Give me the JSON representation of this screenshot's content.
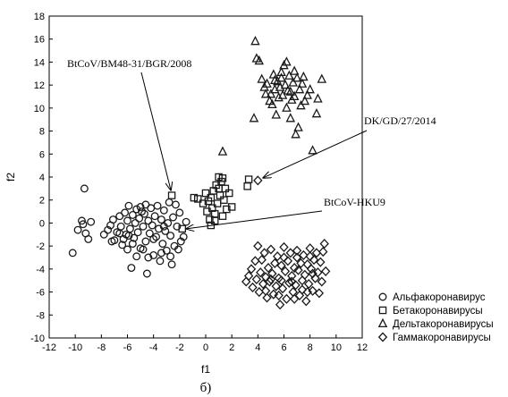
{
  "chart_data": {
    "type": "scatter",
    "xlabel": "f1",
    "ylabel": "f2",
    "xlim": [
      -12,
      12
    ],
    "ylim": [
      -10,
      18
    ],
    "xticks": [
      -12,
      -10,
      -8,
      -6,
      -4,
      -2,
      0,
      2,
      4,
      6,
      8,
      10,
      12
    ],
    "yticks": [
      -10,
      -8,
      -6,
      -4,
      -2,
      0,
      2,
      4,
      6,
      8,
      10,
      12,
      14,
      16,
      18
    ],
    "grid": false,
    "legend_position": "bottom-right outside",
    "caption": "б)",
    "series": [
      {
        "name": "Альфакоронавирус",
        "marker": "circle",
        "points": [
          [
            -10.2,
            -2.6
          ],
          [
            -9.8,
            -0.6
          ],
          [
            -9.5,
            0.2
          ],
          [
            -9.3,
            3.0
          ],
          [
            -9.2,
            -0.9
          ],
          [
            -9.0,
            -1.4
          ],
          [
            -8.8,
            0.1
          ],
          [
            -9.4,
            -0.1
          ],
          [
            -7.8,
            -1.0
          ],
          [
            -7.5,
            -0.6
          ],
          [
            -7.3,
            -0.2
          ],
          [
            -7.1,
            0.3
          ],
          [
            -7.0,
            -1.5
          ],
          [
            -6.8,
            -0.8
          ],
          [
            -6.6,
            0.6
          ],
          [
            -6.5,
            -0.3
          ],
          [
            -6.4,
            -1.9
          ],
          [
            -6.2,
            0.9
          ],
          [
            -6.1,
            -1.0
          ],
          [
            -6.0,
            0.2
          ],
          [
            -5.9,
            1.5
          ],
          [
            -5.8,
            -0.5
          ],
          [
            -5.7,
            -3.9
          ],
          [
            -5.6,
            0.7
          ],
          [
            -5.5,
            -1.3
          ],
          [
            -5.4,
            0.0
          ],
          [
            -5.3,
            1.2
          ],
          [
            -5.2,
            -0.8
          ],
          [
            -5.1,
            0.4
          ],
          [
            -5.0,
            -2.2
          ],
          [
            -4.9,
            1.0
          ],
          [
            -4.8,
            -0.3
          ],
          [
            -4.7,
            0.8
          ],
          [
            -4.6,
            -1.6
          ],
          [
            -4.5,
            -4.4
          ],
          [
            -4.4,
            0.2
          ],
          [
            -4.3,
            -0.9
          ],
          [
            -4.2,
            1.3
          ],
          [
            -4.1,
            -0.2
          ],
          [
            -4.0,
            -2.8
          ],
          [
            -3.9,
            0.6
          ],
          [
            -3.8,
            -1.2
          ],
          [
            -3.7,
            1.5
          ],
          [
            -3.6,
            -0.5
          ],
          [
            -3.5,
            -3.3
          ],
          [
            -3.4,
            0.3
          ],
          [
            -3.3,
            -1.8
          ],
          [
            -3.2,
            1.1
          ],
          [
            -3.1,
            -0.7
          ],
          [
            -3.0,
            -2.4
          ],
          [
            -2.9,
            0.0
          ],
          [
            -2.8,
            1.8
          ],
          [
            -2.7,
            -1.1
          ],
          [
            -2.6,
            -3.6
          ],
          [
            -2.5,
            0.5
          ],
          [
            -2.4,
            -2.0
          ],
          [
            -2.3,
            1.6
          ],
          [
            -1.9,
            -1.6
          ],
          [
            -1.7,
            -1.2
          ],
          [
            -1.5,
            0.1
          ],
          [
            -2.2,
            -0.3
          ],
          [
            -2.0,
            0.9
          ],
          [
            -3.4,
            -2.6
          ],
          [
            -4.4,
            -3.0
          ],
          [
            -5.3,
            -2.9
          ],
          [
            -6.0,
            -2.3
          ],
          [
            -6.3,
            -1.4
          ],
          [
            -5.6,
            -1.8
          ],
          [
            -4.8,
            -2.3
          ],
          [
            -4.0,
            -1.4
          ],
          [
            -3.2,
            -0.3
          ],
          [
            -5.0,
            1.4
          ],
          [
            -6.6,
            -0.9
          ],
          [
            -7.2,
            -1.6
          ],
          [
            -2.7,
            -2.9
          ],
          [
            -2.1,
            -2.3
          ],
          [
            -4.6,
            1.6
          ],
          [
            -5.9,
            -1.1
          ]
        ]
      },
      {
        "name": "Бетакоронавирусы",
        "marker": "square",
        "points": [
          [
            -2.6,
            2.4
          ],
          [
            -1.8,
            -0.5
          ],
          [
            -0.9,
            2.2
          ],
          [
            -0.6,
            2.1
          ],
          [
            -0.2,
            1.7
          ],
          [
            0.0,
            2.6
          ],
          [
            0.1,
            1.0
          ],
          [
            0.2,
            1.9
          ],
          [
            0.3,
            0.3
          ],
          [
            0.4,
            2.2
          ],
          [
            0.5,
            1.3
          ],
          [
            0.6,
            2.8
          ],
          [
            0.7,
            0.8
          ],
          [
            0.8,
            3.3
          ],
          [
            0.9,
            1.7
          ],
          [
            1.0,
            4.0
          ],
          [
            1.1,
            2.4
          ],
          [
            1.2,
            3.6
          ],
          [
            1.3,
            0.6
          ],
          [
            1.4,
            2.0
          ],
          [
            1.5,
            3.0
          ],
          [
            1.6,
            1.2
          ],
          [
            1.8,
            2.6
          ],
          [
            2.0,
            1.4
          ],
          [
            3.2,
            3.2
          ],
          [
            3.3,
            3.8
          ],
          [
            0.4,
            -0.2
          ],
          [
            0.7,
            0.2
          ],
          [
            1.0,
            3.0
          ],
          [
            1.3,
            3.9
          ]
        ]
      },
      {
        "name": "Дельтакоронавирусы",
        "marker": "triangle",
        "points": [
          [
            1.3,
            6.2
          ],
          [
            3.7,
            9.1
          ],
          [
            3.8,
            15.8
          ],
          [
            3.9,
            14.3
          ],
          [
            4.1,
            14.1
          ],
          [
            4.3,
            12.5
          ],
          [
            4.5,
            11.8
          ],
          [
            4.7,
            12.1
          ],
          [
            4.9,
            10.6
          ],
          [
            5.0,
            11.2
          ],
          [
            5.2,
            12.9
          ],
          [
            5.3,
            11.6
          ],
          [
            5.4,
            9.4
          ],
          [
            5.5,
            12.3
          ],
          [
            5.6,
            10.9
          ],
          [
            5.7,
            11.8
          ],
          [
            5.8,
            12.6
          ],
          [
            5.9,
            11.1
          ],
          [
            6.0,
            13.7
          ],
          [
            6.1,
            12.0
          ],
          [
            6.2,
            10.0
          ],
          [
            6.3,
            11.5
          ],
          [
            6.4,
            12.8
          ],
          [
            6.5,
            11.4
          ],
          [
            6.6,
            10.7
          ],
          [
            6.7,
            12.2
          ],
          [
            6.8,
            11.0
          ],
          [
            6.9,
            7.7
          ],
          [
            7.0,
            12.6
          ],
          [
            7.1,
            8.3
          ],
          [
            7.2,
            11.6
          ],
          [
            7.4,
            12.1
          ],
          [
            7.6,
            10.6
          ],
          [
            7.8,
            11.1
          ],
          [
            8.0,
            11.6
          ],
          [
            8.2,
            6.3
          ],
          [
            8.5,
            9.5
          ],
          [
            8.6,
            10.8
          ],
          [
            8.9,
            12.5
          ],
          [
            6.2,
            14.0
          ],
          [
            5.1,
            10.3
          ],
          [
            6.5,
            9.1
          ],
          [
            7.3,
            10.2
          ],
          [
            4.6,
            11.2
          ],
          [
            5.8,
            13.1
          ],
          [
            6.8,
            13.2
          ],
          [
            7.5,
            12.7
          ],
          [
            5.3,
            12.4
          ]
        ]
      },
      {
        "name": "Гаммакоронавирусы",
        "marker": "diamond",
        "points": [
          [
            4.0,
            3.7
          ],
          [
            3.1,
            -5.1
          ],
          [
            3.3,
            -4.6
          ],
          [
            3.5,
            -4.0
          ],
          [
            3.6,
            -5.6
          ],
          [
            3.8,
            -3.3
          ],
          [
            3.9,
            -4.9
          ],
          [
            4.0,
            -2.0
          ],
          [
            4.1,
            -6.0
          ],
          [
            4.2,
            -4.3
          ],
          [
            4.3,
            -3.2
          ],
          [
            4.4,
            -5.3
          ],
          [
            4.5,
            -2.6
          ],
          [
            4.6,
            -4.7
          ],
          [
            4.7,
            -6.5
          ],
          [
            4.8,
            -3.9
          ],
          [
            4.9,
            -5.1
          ],
          [
            5.0,
            -2.3
          ],
          [
            5.1,
            -4.4
          ],
          [
            5.2,
            -6.2
          ],
          [
            5.3,
            -3.5
          ],
          [
            5.4,
            -5.5
          ],
          [
            5.5,
            -2.9
          ],
          [
            5.6,
            -4.8
          ],
          [
            5.7,
            -7.1
          ],
          [
            5.8,
            -3.7
          ],
          [
            5.9,
            -5.7
          ],
          [
            6.0,
            -2.1
          ],
          [
            6.1,
            -4.2
          ],
          [
            6.2,
            -6.6
          ],
          [
            6.3,
            -3.3
          ],
          [
            6.4,
            -5.2
          ],
          [
            6.5,
            -2.6
          ],
          [
            6.6,
            -4.6
          ],
          [
            6.7,
            -6.0
          ],
          [
            6.8,
            -3.9
          ],
          [
            6.9,
            -5.4
          ],
          [
            7.0,
            -2.4
          ],
          [
            7.1,
            -4.1
          ],
          [
            7.2,
            -6.3
          ],
          [
            7.3,
            -3.5
          ],
          [
            7.4,
            -5.0
          ],
          [
            7.5,
            -2.8
          ],
          [
            7.6,
            -4.5
          ],
          [
            7.7,
            -6.8
          ],
          [
            7.8,
            -3.6
          ],
          [
            7.9,
            -5.3
          ],
          [
            8.0,
            -2.2
          ],
          [
            8.1,
            -4.0
          ],
          [
            8.2,
            -5.9
          ],
          [
            8.3,
            -3.2
          ],
          [
            8.4,
            -4.8
          ],
          [
            8.5,
            -2.6
          ],
          [
            8.6,
            -4.3
          ],
          [
            8.7,
            -6.1
          ],
          [
            8.8,
            -3.4
          ],
          [
            8.9,
            -5.1
          ],
          [
            9.0,
            -2.5
          ],
          [
            9.1,
            -1.8
          ],
          [
            9.2,
            -4.2
          ],
          [
            5.0,
            -4.9
          ],
          [
            5.8,
            -5.0
          ],
          [
            6.6,
            -5.1
          ],
          [
            7.4,
            -5.8
          ],
          [
            8.2,
            -4.4
          ],
          [
            4.6,
            -5.9
          ],
          [
            6.0,
            -3.0
          ],
          [
            7.0,
            -3.0
          ],
          [
            8.0,
            -2.9
          ],
          [
            5.6,
            -6.3
          ],
          [
            6.8,
            -6.6
          ],
          [
            7.8,
            -6.0
          ]
        ]
      }
    ],
    "annotations": [
      {
        "text": "BtCoV/BM48-31/BGR/2008",
        "points_to": [
          -2.4,
          2.4
        ]
      },
      {
        "text": "DK/GD/27/2014",
        "points_to": [
          4.0,
          3.7
        ]
      },
      {
        "text": "BtCoV-HKU9",
        "points_to": [
          -1.9,
          -0.5
        ]
      }
    ]
  }
}
